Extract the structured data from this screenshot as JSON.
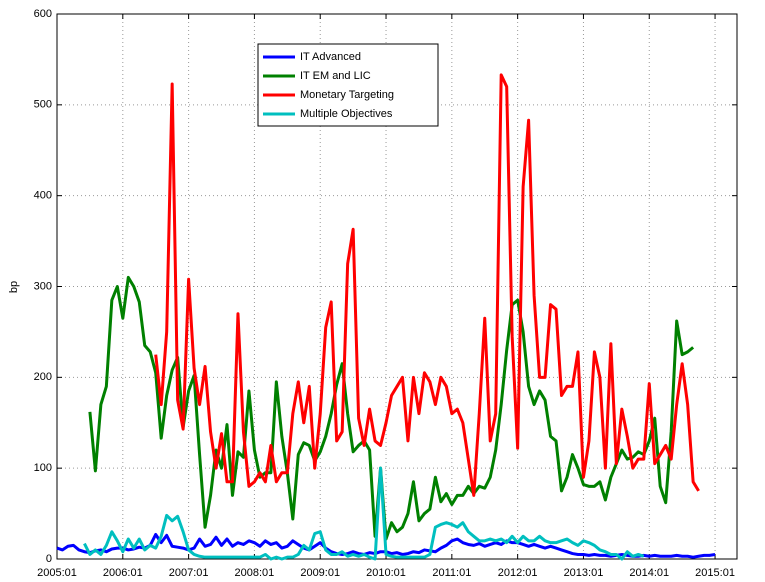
{
  "chart_data": {
    "type": "line",
    "ylabel": "bp",
    "x": [
      0,
      1,
      2,
      3,
      4,
      5,
      6,
      7,
      8,
      9,
      10,
      11,
      12,
      13,
      14,
      15,
      16,
      17,
      18,
      19,
      20,
      21,
      22,
      23,
      24,
      25,
      26,
      27,
      28,
      29,
      30,
      31,
      32,
      33,
      34,
      35,
      36,
      37,
      38,
      39,
      40,
      41,
      42,
      43,
      44,
      45,
      46,
      47,
      48,
      49,
      50,
      51,
      52,
      53,
      54,
      55,
      56,
      57,
      58,
      59,
      60,
      61,
      62,
      63,
      64,
      65,
      66,
      67,
      68,
      69,
      70,
      71,
      72,
      73,
      74,
      75,
      76,
      77,
      78,
      79,
      80,
      81,
      82,
      83,
      84,
      85,
      86,
      87,
      88,
      89,
      90,
      91,
      92,
      93,
      94,
      95,
      96,
      97,
      98,
      99,
      100,
      101,
      102,
      103,
      104,
      105,
      106,
      107,
      108,
      109,
      110,
      111,
      112,
      113,
      114,
      115,
      116,
      117,
      118,
      119,
      120
    ],
    "series": [
      {
        "name": "IT Advanced",
        "color": "#0000ff",
        "values": [
          12,
          10,
          14,
          15,
          10,
          8,
          7,
          9,
          10,
          8,
          11,
          12,
          12,
          10,
          11,
          13,
          12,
          15,
          27,
          18,
          26,
          14,
          13,
          12,
          10,
          12,
          22,
          14,
          16,
          24,
          15,
          22,
          14,
          18,
          16,
          20,
          18,
          14,
          20,
          16,
          18,
          12,
          14,
          20,
          16,
          12,
          10,
          14,
          18,
          12,
          8,
          6,
          5,
          6,
          8,
          6,
          5,
          7,
          6,
          8,
          8,
          6,
          7,
          5,
          6,
          8,
          7,
          10,
          9,
          8,
          12,
          15,
          20,
          22,
          18,
          16,
          15,
          17,
          14,
          16,
          18,
          16,
          20,
          18,
          18,
          16,
          14,
          16,
          14,
          12,
          14,
          12,
          10,
          8,
          6,
          5,
          5,
          4,
          5,
          4,
          4,
          3,
          4,
          5,
          4,
          3,
          3,
          4,
          3,
          4,
          3,
          3,
          3,
          4,
          3,
          3,
          2,
          3,
          4,
          4,
          5
        ]
      },
      {
        "name": "IT EM and LIC",
        "color": "#008000",
        "values": [
          null,
          null,
          null,
          null,
          null,
          null,
          162,
          97,
          170,
          190,
          285,
          300,
          265,
          310,
          300,
          283,
          235,
          228,
          205,
          133,
          180,
          208,
          222,
          145,
          185,
          202,
          115,
          35,
          70,
          120,
          100,
          148,
          70,
          118,
          112,
          185,
          120,
          90,
          95,
          95,
          195,
          135,
          95,
          44,
          115,
          128,
          125,
          108,
          118,
          135,
          160,
          192,
          215,
          160,
          118,
          125,
          130,
          120,
          25,
          100,
          22,
          40,
          30,
          35,
          50,
          85,
          42,
          50,
          55,
          90,
          63,
          72,
          60,
          70,
          70,
          80,
          72,
          80,
          78,
          90,
          120,
          170,
          230,
          280,
          285,
          250,
          190,
          170,
          185,
          175,
          135,
          130,
          75,
          90,
          115,
          100,
          82,
          80,
          80,
          85,
          65,
          90,
          105,
          120,
          110,
          112,
          118,
          115,
          130,
          155,
          80,
          62,
          140,
          262,
          225,
          228,
          233,
          null,
          null,
          null,
          null
        ]
      },
      {
        "name": "Monetary Targeting",
        "color": "#ff0000",
        "values": [
          null,
          null,
          null,
          null,
          null,
          null,
          null,
          null,
          null,
          null,
          null,
          null,
          null,
          null,
          null,
          null,
          null,
          null,
          225,
          170,
          250,
          523,
          175,
          143,
          308,
          210,
          170,
          212,
          140,
          100,
          138,
          85,
          85,
          270,
          140,
          80,
          85,
          95,
          85,
          125,
          85,
          95,
          95,
          160,
          195,
          150,
          190,
          100,
          160,
          255,
          283,
          130,
          140,
          325,
          363,
          155,
          125,
          165,
          130,
          125,
          150,
          180,
          190,
          200,
          130,
          200,
          160,
          205,
          195,
          170,
          200,
          190,
          160,
          165,
          150,
          110,
          70,
          160,
          265,
          130,
          160,
          533,
          520,
          245,
          122,
          410,
          483,
          290,
          200,
          200,
          280,
          275,
          180,
          190,
          190,
          228,
          90,
          130,
          228,
          200,
          100,
          237,
          105,
          165,
          135,
          100,
          110,
          110,
          193,
          105,
          115,
          125,
          110,
          170,
          215,
          170,
          85,
          75,
          null,
          null,
          null
        ]
      },
      {
        "name": "Multiple Objectives",
        "color": "#00bfbf",
        "values": [
          null,
          null,
          null,
          null,
          null,
          17,
          5,
          10,
          5,
          15,
          30,
          20,
          8,
          22,
          12,
          22,
          10,
          15,
          12,
          25,
          48,
          42,
          47,
          30,
          10,
          5,
          3,
          2,
          2,
          2,
          2,
          2,
          2,
          2,
          2,
          2,
          2,
          2,
          5,
          0,
          2,
          0,
          2,
          2,
          5,
          15,
          10,
          28,
          30,
          10,
          5,
          5,
          8,
          3,
          5,
          3,
          5,
          2,
          0,
          100,
          5,
          3,
          2,
          2,
          2,
          2,
          2,
          2,
          5,
          35,
          38,
          40,
          38,
          35,
          40,
          30,
          25,
          20,
          20,
          22,
          20,
          22,
          18,
          25,
          18,
          25,
          20,
          20,
          25,
          20,
          18,
          18,
          20,
          22,
          18,
          15,
          20,
          18,
          15,
          10,
          8,
          5,
          5,
          0,
          8,
          3,
          5,
          3,
          null,
          null,
          null,
          null,
          null,
          null,
          null,
          null,
          null,
          null,
          null,
          null,
          null
        ]
      }
    ],
    "xlim": [
      0,
      124
    ],
    "xticks": [
      {
        "value": 0,
        "label": "2005:01"
      },
      {
        "value": 12,
        "label": "2006:01"
      },
      {
        "value": 24,
        "label": "2007:01"
      },
      {
        "value": 36,
        "label": "2008:01"
      },
      {
        "value": 48,
        "label": "2009:01"
      },
      {
        "value": 60,
        "label": "2010:01"
      },
      {
        "value": 72,
        "label": "2011:01"
      },
      {
        "value": 84,
        "label": "2012:01"
      },
      {
        "value": 96,
        "label": "2013:01"
      },
      {
        "value": 108,
        "label": "2014:01"
      },
      {
        "value": 120,
        "label": "2015:01"
      }
    ],
    "ylim": [
      0,
      600
    ],
    "yticks": [
      0,
      100,
      200,
      300,
      400,
      500,
      600
    ],
    "grid": true
  }
}
